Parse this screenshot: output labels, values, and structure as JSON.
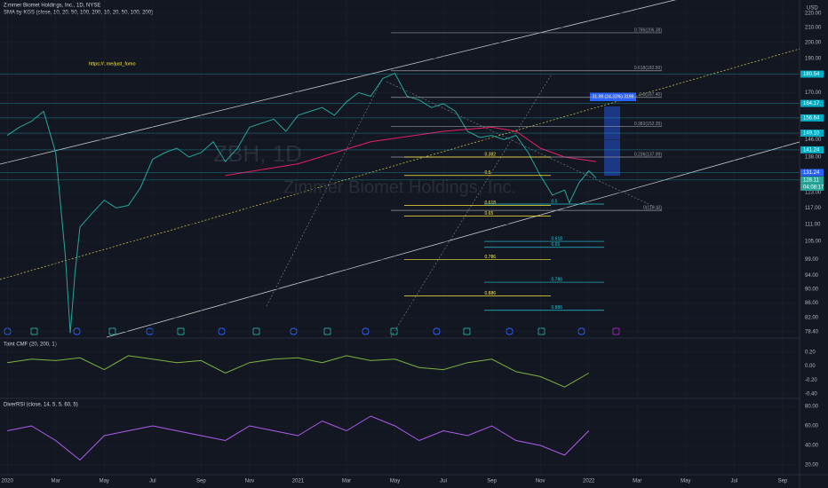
{
  "chart_data": [
    {
      "type": "line",
      "title": "Zimmer Biomet Holdings, Inc., 1D, NYSE",
      "subtitle": "SMA by KGS (close, 10, 20, 50, 100, 200, 10, 20, 50, 100, 200)",
      "annotation": "https://t.me/just_fomo",
      "watermark": [
        "ZBH, 1D",
        "Zimmer Biomet Holdings, Inc."
      ],
      "currency": "USD",
      "countdown": "04:08:17",
      "measure_label": "31.98 (24.32%) 3198",
      "log_scale": true,
      "ylim": [
        77,
        229.5
      ],
      "xlim": [
        -0.3,
        32.7
      ],
      "yticks": [
        {
          "value": 220,
          "label": "220.00"
        },
        {
          "value": 210,
          "label": "210.00"
        },
        {
          "value": 200,
          "label": "200.00"
        },
        {
          "value": 190,
          "label": "190.00"
        },
        {
          "value": 170,
          "label": "170.00"
        },
        {
          "value": 146,
          "label": "146.00"
        },
        {
          "value": 138,
          "label": "138.00"
        },
        {
          "value": 123,
          "label": "123.00"
        },
        {
          "value": 117,
          "label": "117.00"
        },
        {
          "value": 111,
          "label": "111.00"
        },
        {
          "value": 105,
          "label": "105.00"
        },
        {
          "value": 99,
          "label": "99.00"
        },
        {
          "value": 94,
          "label": "94.00"
        },
        {
          "value": 90,
          "label": "90.00"
        },
        {
          "value": 86,
          "label": "86.00"
        },
        {
          "value": 82,
          "label": "82.00"
        },
        {
          "value": 78.4,
          "label": "78.40"
        }
      ],
      "xticks": [
        {
          "value": 0,
          "label": "2020"
        },
        {
          "value": 2,
          "label": "Mar"
        },
        {
          "value": 4,
          "label": "May"
        },
        {
          "value": 6,
          "label": "Jul"
        },
        {
          "value": 8,
          "label": "Sep"
        },
        {
          "value": 10,
          "label": "Nov"
        },
        {
          "value": 12,
          "label": "2021"
        },
        {
          "value": 14,
          "label": "Mar"
        },
        {
          "value": 16,
          "label": "May"
        },
        {
          "value": 18,
          "label": "Jul"
        },
        {
          "value": 20,
          "label": "Sep"
        },
        {
          "value": 22,
          "label": "Nov"
        },
        {
          "value": 24,
          "label": "2022"
        },
        {
          "value": 26,
          "label": "Mar"
        },
        {
          "value": 28,
          "label": "May"
        },
        {
          "value": 30,
          "label": "Jul"
        },
        {
          "value": 32,
          "label": "Sep"
        }
      ],
      "series": [
        {
          "color": "#26a69a",
          "x": [
            0,
            0.5,
            1,
            1.5,
            2,
            2.4,
            2.6,
            2.8,
            3,
            3.5,
            4,
            4.5,
            5,
            5.5,
            6,
            6.5,
            7,
            7.5,
            8,
            8.5,
            9,
            9.5,
            10,
            10.5,
            11,
            11.5,
            12,
            12.5,
            13,
            13.5,
            14,
            14.5,
            15,
            15.5,
            16,
            16.5,
            17,
            17.5,
            18,
            18.5,
            19,
            19.5,
            20,
            20.5,
            21,
            21.5,
            22,
            22.5,
            23,
            23.2,
            23.6,
            24,
            24.3
          ],
          "values": [
            148,
            152,
            155,
            160,
            140,
            100,
            78,
            95,
            110,
            115,
            120,
            117,
            118,
            125,
            137,
            140,
            142,
            138,
            140,
            145,
            136,
            142,
            152,
            154,
            156,
            150,
            158,
            160,
            162,
            158,
            165,
            170,
            168,
            178,
            181,
            168,
            166,
            162,
            164,
            160,
            150,
            147,
            148,
            146,
            148,
            140,
            130,
            122,
            124,
            119,
            127,
            132,
            129
          ]
        },
        {
          "color": "#e91e63",
          "x": [
            9,
            12,
            15,
            18,
            20,
            21,
            22,
            23,
            24.3
          ],
          "values": [
            130,
            135,
            145,
            150,
            152,
            150,
            142,
            138,
            136
          ]
        }
      ],
      "price_tags": [
        180.54,
        164.17,
        156.64,
        {
          "value": 149.1,
          "label": "149.10"
        },
        141.24,
        131.24,
        128.11
      ],
      "fib_grey": [
        {
          "text": "0.786(206.38)",
          "price": 206.38
        },
        {
          "text": "0.618(182.50)",
          "price": 182.5
        },
        {
          "text": "0.5(167.40)",
          "price": 167.4
        },
        {
          "text": "0.382(152.35)",
          "price": 152.35
        },
        {
          "text": "0.236(137.99)",
          "price": 137.99
        },
        {
          "text": "0(116.10)",
          "price": 116.1
        }
      ],
      "fib_yellow": [
        {
          "text": "0.382",
          "price": 138
        },
        {
          "text": "0.5",
          "price": 130
        },
        {
          "text": "0.618",
          "price": 118
        },
        {
          "text": "0.65",
          "price": 114
        },
        {
          "text": "0.786",
          "price": 99
        },
        {
          "text": "0.886",
          "price": 88
        }
      ],
      "fib_teal": [
        {
          "text": "0.5",
          "price": 118.5
        },
        {
          "text": "0.618",
          "price": 105
        },
        {
          "text": "0.65",
          "price": 103
        },
        {
          "text": "0.786",
          "price": 92
        },
        {
          "text": "0.886",
          "price": 84
        }
      ]
    },
    {
      "type": "line",
      "title": "Taint CMF (20, 200, 1)",
      "ylim": [
        -0.438,
        0.353
      ],
      "xlim": [
        -0.3,
        32.7
      ],
      "yticks": [
        {
          "value": 0.2,
          "label": "0.20"
        },
        {
          "value": 0,
          "label": "0.00"
        },
        {
          "value": -0.2,
          "label": "-0.20"
        },
        {
          "value": -0.4,
          "label": "-0.40"
        }
      ],
      "series": [
        {
          "color": "#7cb342",
          "x": [
            0,
            1,
            2,
            3,
            4,
            5,
            6,
            7,
            8,
            9,
            10,
            11,
            12,
            13,
            14,
            15,
            16,
            17,
            18,
            19,
            20,
            21,
            22,
            23,
            24
          ],
          "values": [
            0.05,
            0.1,
            0.08,
            0.12,
            -0.05,
            0.15,
            0.1,
            0.05,
            0.08,
            -0.1,
            0.05,
            0.1,
            0.12,
            0.05,
            0.15,
            0.08,
            0.1,
            -0.02,
            -0.05,
            0.05,
            0.1,
            -0.08,
            -0.15,
            -0.3,
            -0.1
          ]
        }
      ]
    },
    {
      "type": "line",
      "title": "DiverRSI (close, 14, 5, 5, 60, 5)",
      "ylim": [
        10,
        85.5
      ],
      "xlim": [
        -0.3,
        32.7
      ],
      "yticks": [
        {
          "value": 80,
          "label": "80.00"
        },
        {
          "value": 60,
          "label": "60.00"
        },
        {
          "value": 40,
          "label": "40.00"
        },
        {
          "value": 20,
          "label": "20.00"
        }
      ],
      "series": [
        {
          "color": "#b05cf0",
          "x": [
            0,
            1,
            2,
            3,
            4,
            5,
            6,
            7,
            8,
            9,
            10,
            11,
            12,
            13,
            14,
            15,
            16,
            17,
            18,
            19,
            20,
            21,
            22,
            23,
            24
          ],
          "values": [
            55,
            60,
            45,
            25,
            50,
            55,
            60,
            55,
            50,
            45,
            60,
            55,
            50,
            65,
            55,
            70,
            60,
            45,
            55,
            50,
            60,
            45,
            40,
            30,
            55
          ]
        }
      ]
    }
  ]
}
